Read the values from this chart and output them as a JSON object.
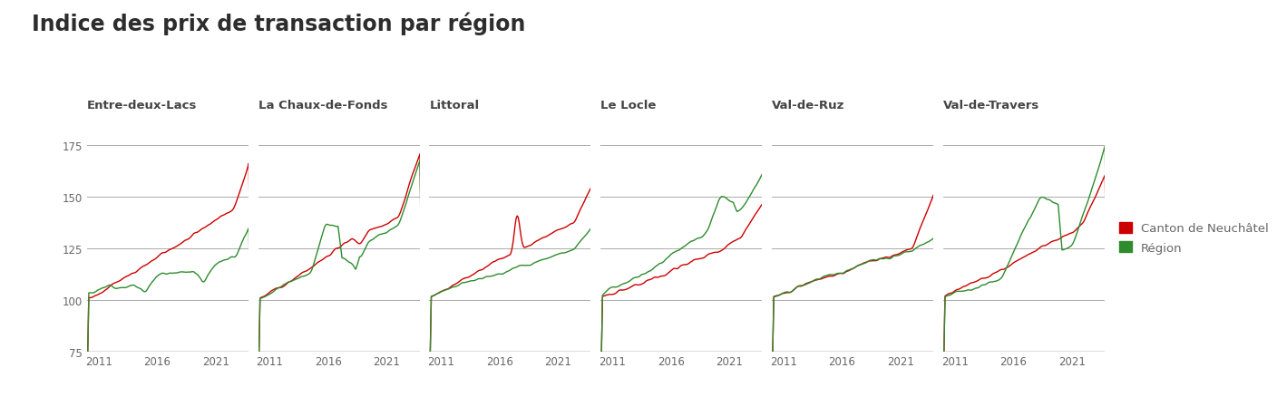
{
  "title": "Indice des prix de transaction par région",
  "title_fontsize": 17,
  "title_color": "#2d2d2d",
  "title_bold": true,
  "regions": [
    "Entre-deux-Lacs",
    "La Chaux-de-Fonds",
    "Littoral",
    "Le Locle",
    "Val-de-Ruz",
    "Val-de-Travers"
  ],
  "canton_color": "#cc0000",
  "region_color": "#2e8b2e",
  "legend_canton": "Canton de Neuchâtel",
  "legend_region": "Région",
  "ylim": [
    75,
    180
  ],
  "yticks": [
    75,
    100,
    125,
    150,
    175
  ],
  "xticks": [
    2011,
    2016,
    2021
  ],
  "xmin": 2010.0,
  "xmax": 2023.8,
  "hline_color": "#aaaaaa",
  "hline_lw": 0.7,
  "bottom_line_color": "#555555",
  "background_color": "#ffffff",
  "label_color": "#666666",
  "region_label_color": "#444444",
  "label_fontsize": 9.5,
  "tick_fontsize": 8.5,
  "line_width": 1.0
}
